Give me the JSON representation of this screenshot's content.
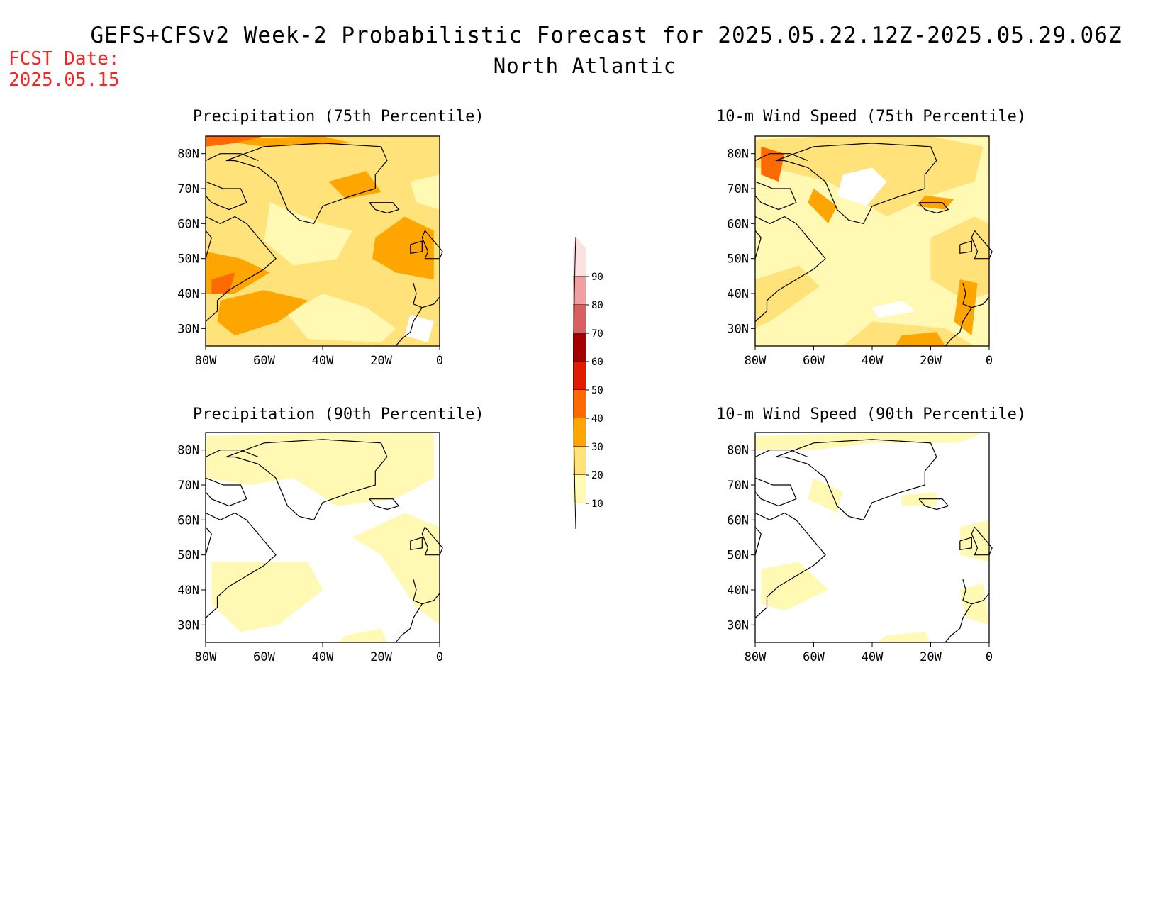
{
  "header": {
    "title": "GEFS+CFSv2 Week-2 Probabilistic Forecast for 2025.05.22.12Z-2025.05.29.06Z",
    "region": "North Atlantic",
    "fcst_label": "FCST Date:",
    "fcst_date": "2025.05.15"
  },
  "panels": [
    {
      "title": "Precipitation (75th Percentile)",
      "pattern": "p75"
    },
    {
      "title": "10-m Wind Speed (75th Percentile)",
      "pattern": "w75"
    },
    {
      "title": "Precipitation (90th Percentile)",
      "pattern": "p90"
    },
    {
      "title": "10-m Wind Speed (90th Percentile)",
      "pattern": "w90"
    }
  ],
  "axes": {
    "lat_ticks": [
      "80N",
      "70N",
      "60N",
      "50N",
      "40N",
      "30N"
    ],
    "lat_values": [
      80,
      70,
      60,
      50,
      40,
      30
    ],
    "lon_ticks": [
      "80W",
      "60W",
      "40W",
      "20W",
      "0"
    ],
    "lon_values": [
      -80,
      -60,
      -40,
      -20,
      0
    ],
    "lat_range": [
      25,
      85
    ],
    "lon_range": [
      -80,
      0
    ]
  },
  "colorbar": {
    "labels": [
      "90",
      "80",
      "70",
      "60",
      "50",
      "40",
      "30",
      "20",
      "10"
    ],
    "levels": [
      10,
      20,
      30,
      40,
      50,
      60,
      70,
      80,
      90
    ],
    "colors": [
      "#fff9b3",
      "#ffe27a",
      "#ffa500",
      "#ff6a00",
      "#e11a00",
      "#a50000",
      "#d96060",
      "#f0a0a0",
      "#fde0e0"
    ]
  }
}
